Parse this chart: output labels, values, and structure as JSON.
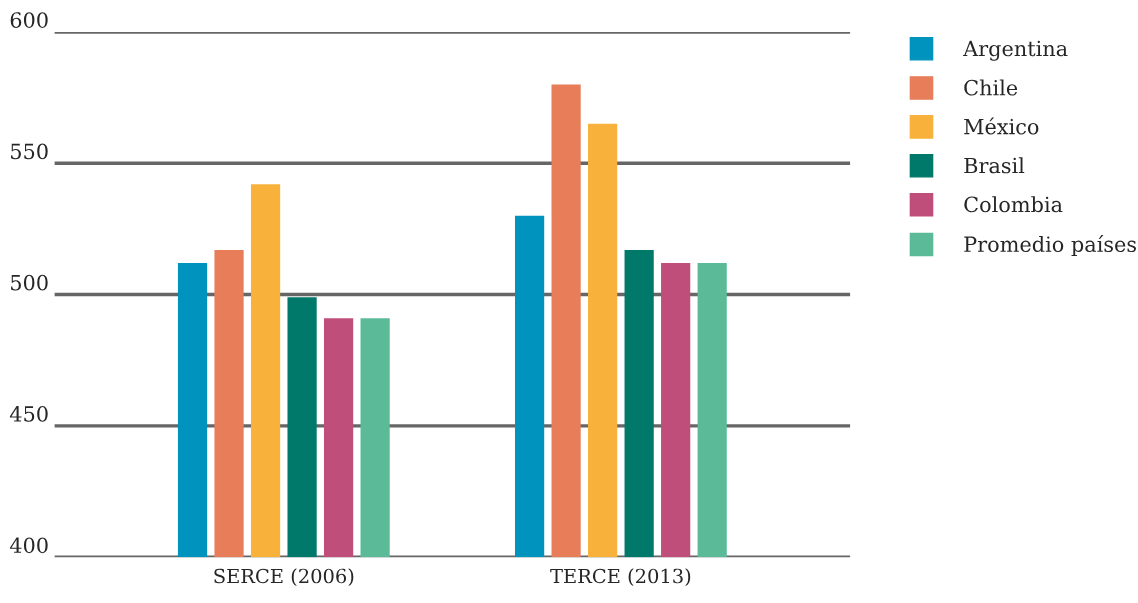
{
  "chart_data": {
    "type": "bar",
    "categories": [
      "SERCE (2006)",
      "TERCE (2013)"
    ],
    "series": [
      {
        "name": "Argentina",
        "color": "#0093bd",
        "values": [
          512,
          530
        ]
      },
      {
        "name": "Chile",
        "color": "#e87d5a",
        "values": [
          517,
          580
        ]
      },
      {
        "name": "México",
        "color": "#f8b23b",
        "values": [
          542,
          565
        ]
      },
      {
        "name": "Brasil",
        "color": "#00786a",
        "values": [
          499,
          517
        ]
      },
      {
        "name": "Colombia",
        "color": "#bf4e7a",
        "values": [
          491,
          512
        ]
      },
      {
        "name": "Promedio países",
        "color": "#5bba98",
        "values": [
          491,
          512
        ]
      }
    ],
    "ylim": [
      400,
      600
    ],
    "yticks": [
      400,
      450,
      500,
      550,
      600
    ],
    "grid": "y",
    "legend": "top right"
  }
}
